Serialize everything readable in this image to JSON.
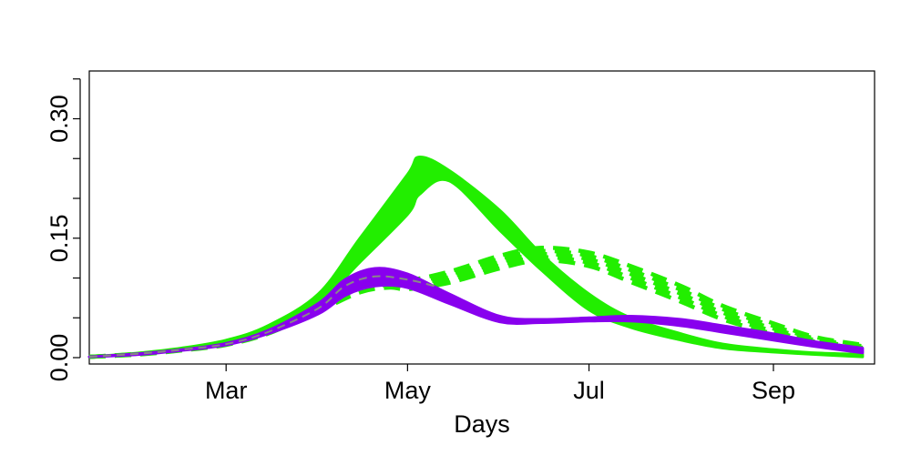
{
  "chart_data": {
    "type": "line",
    "title": "",
    "xlabel": "Days",
    "ylabel": "",
    "x_axis": {
      "kind": "date",
      "range": [
        "2020-01-15",
        "2020-10-05"
      ],
      "ticks": [
        {
          "label": "Mar",
          "value": "2020-03-01"
        },
        {
          "label": "May",
          "value": "2020-05-01"
        },
        {
          "label": "Jul",
          "value": "2020-07-01"
        },
        {
          "label": "Sep",
          "value": "2020-09-01"
        }
      ]
    },
    "y_axis": {
      "range": [
        -0.008,
        0.36
      ],
      "ticks": [
        0.0,
        0.05,
        0.1,
        0.15,
        0.2,
        0.25,
        0.3,
        0.35
      ],
      "labeled_ticks": [
        {
          "label": "0.00",
          "value": 0.0
        },
        {
          "label": "0.15",
          "value": 0.15
        },
        {
          "label": "0.30",
          "value": 0.3
        }
      ]
    },
    "grid": false,
    "legend": "none",
    "bands": [
      {
        "color": "#22ee00",
        "style": "solid",
        "x": [
          "2020-01-15",
          "2020-02-01",
          "2020-02-15",
          "2020-03-01",
          "2020-03-15",
          "2020-04-01",
          "2020-04-15",
          "2020-05-01",
          "2020-05-05",
          "2020-05-15",
          "2020-06-01",
          "2020-06-15",
          "2020-07-01",
          "2020-07-15",
          "2020-08-01",
          "2020-08-15",
          "2020-09-01",
          "2020-09-15",
          "2020-10-01"
        ],
        "upper": [
          0.001,
          0.006,
          0.012,
          0.022,
          0.04,
          0.08,
          0.15,
          0.23,
          0.252,
          0.235,
          0.185,
          0.13,
          0.08,
          0.05,
          0.03,
          0.017,
          0.01,
          0.006,
          0.004
        ],
        "lower": [
          0.001,
          0.005,
          0.011,
          0.02,
          0.036,
          0.068,
          0.12,
          0.18,
          0.205,
          0.222,
          0.16,
          0.11,
          0.06,
          0.038,
          0.022,
          0.012,
          0.007,
          0.004,
          0.001
        ]
      },
      {
        "color": "#22ee00",
        "style": "dashed",
        "x": [
          "2020-01-15",
          "2020-02-01",
          "2020-02-15",
          "2020-03-01",
          "2020-03-15",
          "2020-04-01",
          "2020-04-15",
          "2020-04-25",
          "2020-05-01",
          "2020-05-15",
          "2020-06-01",
          "2020-06-15",
          "2020-07-01",
          "2020-07-15",
          "2020-08-01",
          "2020-08-15",
          "2020-09-01",
          "2020-09-15",
          "2020-10-01"
        ],
        "upper": [
          0.001,
          0.005,
          0.01,
          0.018,
          0.034,
          0.068,
          0.098,
          0.1,
          0.097,
          0.108,
          0.128,
          0.138,
          0.132,
          0.115,
          0.09,
          0.065,
          0.043,
          0.026,
          0.016
        ],
        "lower": [
          0.001,
          0.004,
          0.009,
          0.016,
          0.03,
          0.058,
          0.082,
          0.088,
          0.086,
          0.094,
          0.112,
          0.122,
          0.115,
          0.095,
          0.07,
          0.048,
          0.03,
          0.018,
          0.009
        ]
      },
      {
        "color": "#8800ee",
        "style": "solid",
        "x": [
          "2020-01-15",
          "2020-02-01",
          "2020-02-15",
          "2020-03-01",
          "2020-03-15",
          "2020-04-01",
          "2020-04-10",
          "2020-04-20",
          "2020-05-01",
          "2020-05-15",
          "2020-06-01",
          "2020-06-15",
          "2020-07-01",
          "2020-07-15",
          "2020-08-01",
          "2020-08-15",
          "2020-09-01",
          "2020-09-15",
          "2020-10-01"
        ],
        "upper": [
          0.001,
          0.005,
          0.01,
          0.018,
          0.034,
          0.068,
          0.098,
          0.112,
          0.105,
          0.08,
          0.052,
          0.048,
          0.05,
          0.052,
          0.048,
          0.04,
          0.03,
          0.02,
          0.012
        ],
        "lower": [
          0.001,
          0.004,
          0.009,
          0.016,
          0.03,
          0.055,
          0.078,
          0.09,
          0.088,
          0.068,
          0.045,
          0.044,
          0.046,
          0.046,
          0.04,
          0.032,
          0.022,
          0.014,
          0.006
        ]
      }
    ],
    "dashed_lines": [
      {
        "color": "#888888",
        "x": [
          "2020-01-15",
          "2020-02-01",
          "2020-02-15",
          "2020-03-01",
          "2020-03-15",
          "2020-04-01",
          "2020-04-10",
          "2020-04-20",
          "2020-05-01",
          "2020-05-10"
        ],
        "y": [
          0.001,
          0.005,
          0.01,
          0.017,
          0.032,
          0.062,
          0.09,
          0.102,
          0.098,
          0.09
        ]
      }
    ]
  }
}
